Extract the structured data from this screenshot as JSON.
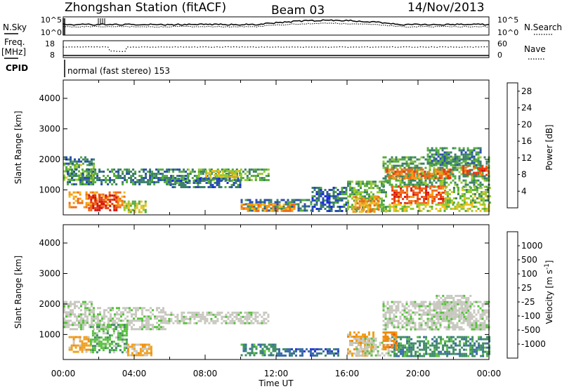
{
  "header": {
    "station": "Zhongshan Station (fitACF)",
    "beam": "Beam 03",
    "date": "14/Nov/2013"
  },
  "summary": {
    "nsky_label": "N.Sky",
    "nsearch_label": "N.Search",
    "noise_ticks": [
      "10^5",
      "10^0"
    ],
    "freq_label": "Freq.",
    "freq_unit": "[MHz]",
    "freq_ticks": [
      "18",
      "8"
    ],
    "nave_label": "Nave",
    "nave_ticks": [
      "60",
      "0"
    ],
    "cpid_label": "CPID",
    "cpid_text": "normal (fast stereo) 153"
  },
  "colors": {
    "power": [
      "#1a28e6",
      "#2a4fb0",
      "#3c7f6a",
      "#54ad3c",
      "#96c932",
      "#f0c020",
      "#f49a15",
      "#ef6a1a",
      "#e83a12",
      "#d41414"
    ],
    "velocity": [
      "#2b36d8",
      "#3a6aa8",
      "#3f8c66",
      "#56c23a",
      "#c8c8c0",
      "#c8c8c0",
      "#f0a020",
      "#f08a10",
      "#ef5a0e",
      "#e01818"
    ]
  },
  "chart_data": [
    {
      "type": "heatmap",
      "name": "Power",
      "ylabel": "Slant Range [km]",
      "xlabel": "",
      "x_ticks": [
        "00:00",
        "04:00",
        "08:00",
        "12:00",
        "16:00",
        "20:00",
        "00:00"
      ],
      "xlim_hours": [
        0,
        24
      ],
      "y_ticks": [
        1000,
        2000,
        3000,
        4000
      ],
      "ylim": [
        180,
        4600
      ],
      "colorbar": {
        "label": "Power [dB]",
        "range": [
          0,
          30
        ],
        "ticks": [
          "4",
          "8",
          "12",
          "16",
          "20",
          "24",
          "28"
        ]
      },
      "regions": [
        {
          "t": [
            0.0,
            1.7
          ],
          "r": [
            1350,
            1850
          ],
          "v": 12
        },
        {
          "t": [
            0.0,
            1.7
          ],
          "r": [
            1850,
            2100
          ],
          "v": 7
        },
        {
          "t": [
            0.3,
            3.5
          ],
          "r": [
            420,
            950
          ],
          "v": 20
        },
        {
          "t": [
            1.4,
            3.0
          ],
          "r": [
            350,
            850
          ],
          "v": 27
        },
        {
          "t": [
            3.4,
            4.6
          ],
          "r": [
            300,
            650
          ],
          "v": 14
        },
        {
          "t": [
            0.2,
            7.0
          ],
          "r": [
            1200,
            1700
          ],
          "v": 8
        },
        {
          "t": [
            7.0,
            11.6
          ],
          "r": [
            1350,
            1700
          ],
          "v": 10
        },
        {
          "t": [
            8.0,
            10.0
          ],
          "r": [
            1400,
            1650
          ],
          "v": 15
        },
        {
          "t": [
            6.0,
            10.0
          ],
          "r": [
            1100,
            1400
          ],
          "v": 6
        },
        {
          "t": [
            10.0,
            14.0
          ],
          "r": [
            300,
            700
          ],
          "v": 7
        },
        {
          "t": [
            10.0,
            13.0
          ],
          "r": [
            300,
            550
          ],
          "v": 20
        },
        {
          "t": [
            14.0,
            16.0
          ],
          "r": [
            300,
            1100
          ],
          "v": 6
        },
        {
          "t": [
            16.0,
            18.2
          ],
          "r": [
            300,
            1300
          ],
          "v": 11
        },
        {
          "t": [
            16.3,
            17.8
          ],
          "r": [
            300,
            800
          ],
          "v": 19
        },
        {
          "t": [
            18.0,
            24.0
          ],
          "r": [
            1100,
            2100
          ],
          "v": 10
        },
        {
          "t": [
            18.2,
            22.0
          ],
          "r": [
            1400,
            1700
          ],
          "v": 22
        },
        {
          "t": [
            18.5,
            21.5
          ],
          "r": [
            550,
            1150
          ],
          "v": 24
        },
        {
          "t": [
            21.5,
            24.0
          ],
          "r": [
            600,
            1100
          ],
          "v": 12
        },
        {
          "t": [
            22.5,
            24.0
          ],
          "r": [
            1500,
            1800
          ],
          "v": 24
        },
        {
          "t": [
            18.0,
            24.0
          ],
          "r": [
            300,
            550
          ],
          "v": 14
        },
        {
          "t": [
            20.5,
            23.5
          ],
          "r": [
            1800,
            2400
          ],
          "v": 8
        }
      ]
    },
    {
      "type": "heatmap",
      "name": "Velocity",
      "ylabel": "Slant Range [km]",
      "xlabel": "Time UT",
      "x_ticks": [
        "00:00",
        "04:00",
        "08:00",
        "12:00",
        "16:00",
        "20:00",
        "00:00"
      ],
      "xlim_hours": [
        0,
        24
      ],
      "y_ticks": [
        1000,
        2000,
        3000,
        4000
      ],
      "ylim": [
        180,
        4600
      ],
      "colorbar": {
        "label": "Velocity [m s^-1]",
        "ticks": [
          "1000",
          "500",
          "100",
          "25",
          "-25",
          "-100",
          "-500",
          "-1000"
        ]
      },
      "regions": [
        {
          "t": [
            0.0,
            5.8
          ],
          "r": [
            1150,
            1900
          ],
          "v": 4
        },
        {
          "t": [
            5.8,
            11.6
          ],
          "r": [
            1350,
            1750
          ],
          "v": 4
        },
        {
          "t": [
            0.0,
            1.6
          ],
          "r": [
            1900,
            2100
          ],
          "v": 4
        },
        {
          "t": [
            0.3,
            1.6
          ],
          "r": [
            400,
            950
          ],
          "v": 6
        },
        {
          "t": [
            1.5,
            3.6
          ],
          "r": [
            400,
            1350
          ],
          "v": 3
        },
        {
          "t": [
            3.6,
            5.0
          ],
          "r": [
            300,
            700
          ],
          "v": 6
        },
        {
          "t": [
            10.0,
            12.0
          ],
          "r": [
            300,
            700
          ],
          "v": 2
        },
        {
          "t": [
            12.0,
            15.5
          ],
          "r": [
            300,
            550
          ],
          "v": 1
        },
        {
          "t": [
            16.0,
            17.5
          ],
          "r": [
            300,
            1100
          ],
          "v": 6
        },
        {
          "t": [
            16.5,
            18.5
          ],
          "r": [
            300,
            900
          ],
          "v": 4
        },
        {
          "t": [
            18.0,
            24.0
          ],
          "r": [
            1200,
            2100
          ],
          "v": 4
        },
        {
          "t": [
            18.5,
            24.0
          ],
          "r": [
            300,
            950
          ],
          "v": 2
        },
        {
          "t": [
            18.0,
            18.8
          ],
          "r": [
            500,
            1100
          ],
          "v": 7
        },
        {
          "t": [
            21.0,
            23.0
          ],
          "r": [
            1500,
            2300
          ],
          "v": 4
        }
      ]
    }
  ]
}
